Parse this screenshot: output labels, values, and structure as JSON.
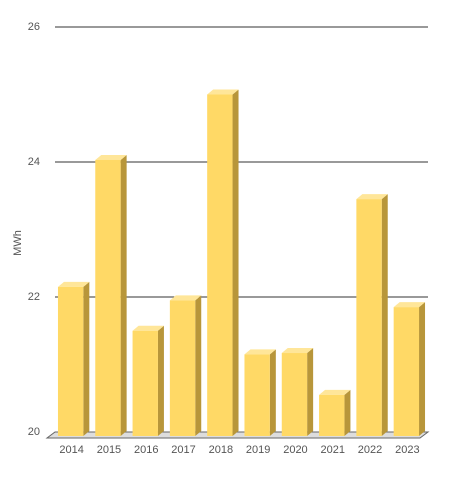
{
  "chart_data": {
    "type": "bar3d",
    "y_label": "MWh",
    "categories": [
      "2014",
      "2015",
      "2016",
      "2017",
      "2018",
      "2019",
      "2020",
      "2021",
      "2022",
      "2023"
    ],
    "values": [
      22.15,
      24.03,
      21.5,
      21.95,
      25.0,
      21.15,
      21.17,
      20.55,
      23.45,
      21.85
    ],
    "color": "#ffd966",
    "ylim": [
      20,
      26
    ],
    "yticks": [
      20,
      22,
      24,
      26
    ],
    "grid": true
  }
}
